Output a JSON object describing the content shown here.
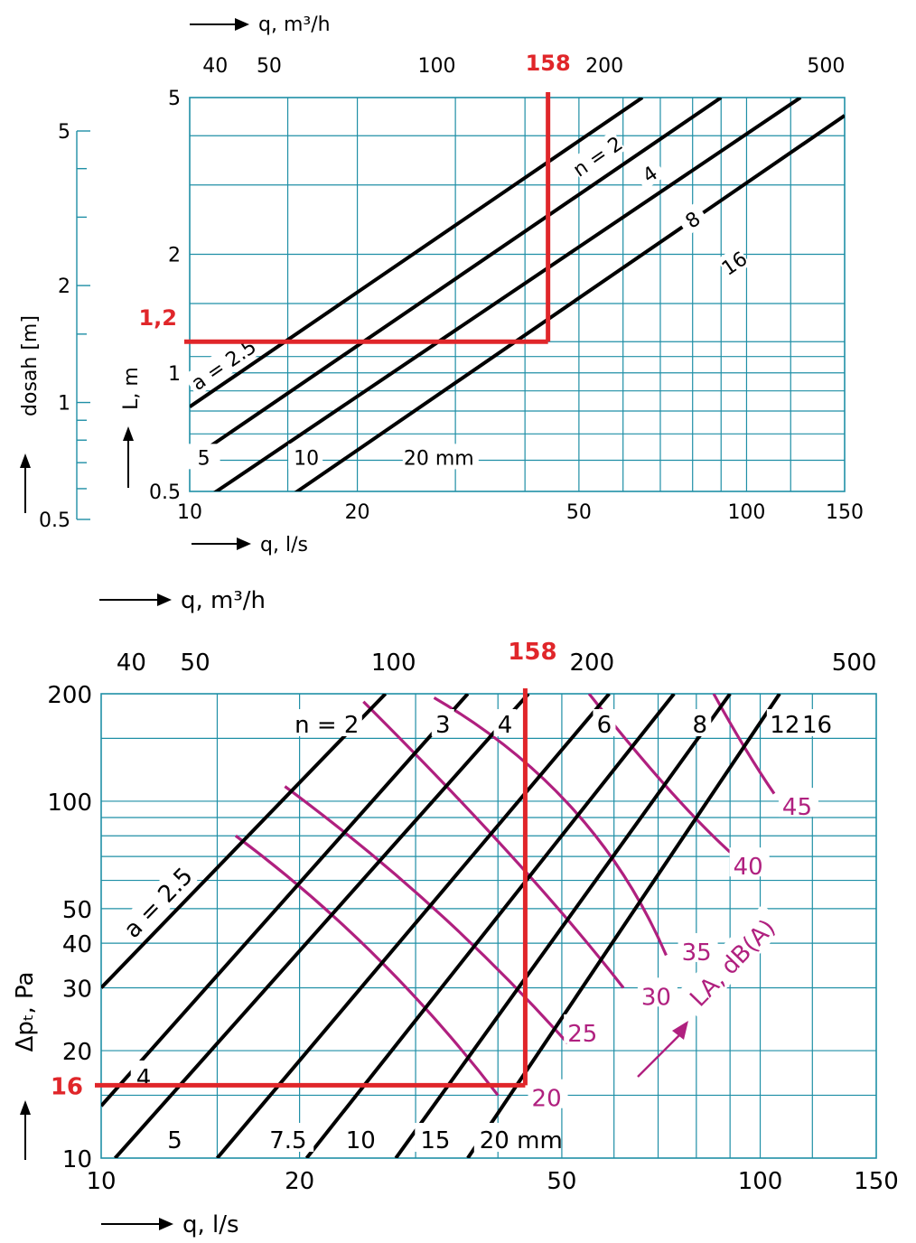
{
  "colors": {
    "grid": "#1f8fa6",
    "line": "#000000",
    "highlight": "#e0262a",
    "sound": "#b0207f"
  },
  "chart_data": [
    {
      "type": "line",
      "x_axis_top": {
        "label": "q, m³/h",
        "scale": "log",
        "ticks": [
          "40",
          "50",
          "100",
          "200",
          "500"
        ],
        "tick_values": [
          40,
          50,
          100,
          200,
          500
        ]
      },
      "x_axis_bottom": {
        "label": "q, l/s",
        "scale": "log",
        "ticks": [
          "10",
          "20",
          "50",
          "100",
          "150"
        ],
        "tick_values": [
          10,
          20,
          50,
          100,
          150
        ],
        "xlim": [
          10,
          150
        ]
      },
      "y_axis": {
        "label": "L, m",
        "scale": "log",
        "ticks": [
          "0.5",
          "1",
          "2",
          "5"
        ],
        "tick_values": [
          0.5,
          1,
          2,
          5
        ],
        "ylim": [
          0.5,
          5
        ]
      },
      "y_axis_outer": {
        "label": "dosah [m]",
        "ticks": [
          "0.5",
          "1",
          "2",
          "5"
        ],
        "tick_values": [
          0.5,
          1,
          2,
          5
        ]
      },
      "grid": true,
      "series": [
        {
          "name": "n = 2",
          "x": [
            10,
            65
          ],
          "y": [
            0.82,
            5.0
          ]
        },
        {
          "name": "4",
          "x": [
            10,
            90
          ],
          "y": [
            0.6,
            5.0
          ]
        },
        {
          "name": "8",
          "x": [
            10,
            125
          ],
          "y": [
            0.45,
            5.0
          ]
        },
        {
          "name": "16",
          "x": [
            14,
            150
          ],
          "y": [
            0.45,
            4.5
          ]
        }
      ],
      "size_labels": [
        {
          "text": "a = 2.5",
          "x": 11.5,
          "y": 1.05
        },
        {
          "text": "5",
          "x": 10.6,
          "y": 0.61
        },
        {
          "text": "10",
          "x": 16.2,
          "y": 0.61
        },
        {
          "text": "20 mm",
          "x": 26,
          "y": 0.61
        }
      ],
      "highlight": {
        "q_ls": 44,
        "q_m3h": 158,
        "L": 1.2,
        "q_label": "158",
        "L_label": "1,2"
      }
    },
    {
      "type": "line",
      "x_axis_top": {
        "label": "q, m³/h",
        "scale": "log",
        "ticks": [
          "40",
          "50",
          "100",
          "200",
          "500"
        ],
        "tick_values": [
          40,
          50,
          100,
          200,
          500
        ]
      },
      "x_axis_bottom": {
        "label": "q, l/s",
        "scale": "log",
        "ticks": [
          "10",
          "20",
          "50",
          "100",
          "150"
        ],
        "tick_values": [
          10,
          20,
          50,
          100,
          150
        ],
        "xlim": [
          10,
          150
        ]
      },
      "y_axis": {
        "label": "Δpₜ, Pa",
        "scale": "log",
        "ticks": [
          "10",
          "20",
          "30",
          "40",
          "50",
          "100",
          "200"
        ],
        "tick_values": [
          10,
          20,
          30,
          40,
          50,
          100,
          200
        ],
        "ylim": [
          10,
          200
        ]
      },
      "grid": true,
      "series": [
        {
          "name": "a = 2.5",
          "x": [
            10,
            27
          ],
          "y": [
            30,
            200
          ]
        },
        {
          "name": "4",
          "x": [
            10,
            36
          ],
          "y": [
            14,
            200
          ]
        },
        {
          "name": "5",
          "x": [
            10.5,
            44.5
          ],
          "y": [
            10,
            200
          ]
        },
        {
          "name": "7.5",
          "x": [
            15,
            59
          ],
          "y": [
            10,
            200
          ]
        },
        {
          "name": "10",
          "x": [
            20.5,
            74
          ],
          "y": [
            10,
            200
          ]
        },
        {
          "name": "15",
          "x": [
            28,
            90
          ],
          "y": [
            10,
            200
          ]
        },
        {
          "name": "20 mm",
          "x": [
            36,
            107
          ],
          "y": [
            10,
            200
          ]
        }
      ],
      "n_labels": [
        {
          "text": "n = 2",
          "x": 22,
          "y": 165
        },
        {
          "text": "3",
          "x": 33,
          "y": 165
        },
        {
          "text": "4",
          "x": 41,
          "y": 165
        },
        {
          "text": "6",
          "x": 58,
          "y": 165
        },
        {
          "text": "8",
          "x": 81,
          "y": 165
        },
        {
          "text": "12",
          "x": 109,
          "y": 165
        },
        {
          "text": "16",
          "x": 122,
          "y": 165
        }
      ],
      "bottom_labels": [
        {
          "text": "4",
          "x": 11.3,
          "y": 16.9
        },
        {
          "text": "5",
          "x": 12.6,
          "y": 11.3
        },
        {
          "text": "7.5",
          "x": 18,
          "y": 11.3
        },
        {
          "text": "10",
          "x": 23.5,
          "y": 11.3
        },
        {
          "text": "15",
          "x": 30.5,
          "y": 11.3
        },
        {
          "text": "20 mm",
          "x": 37.5,
          "y": 11.3
        }
      ],
      "sound_series": [
        {
          "name": "20",
          "x": [
            16,
            26,
            40
          ],
          "y": [
            80,
            37,
            15
          ]
        },
        {
          "name": "25",
          "x": [
            19,
            32,
            51
          ],
          "y": [
            110,
            50,
            21
          ]
        },
        {
          "name": "30",
          "x": [
            25,
            42,
            62
          ],
          "y": [
            190,
            70,
            30
          ]
        },
        {
          "name": "35",
          "x": [
            32,
            52,
            72
          ],
          "y": [
            195,
            95,
            37
          ]
        },
        {
          "name": "40",
          "x": [
            55,
            72,
            90
          ],
          "y": [
            200,
            110,
            72
          ]
        },
        {
          "name": "45",
          "x": [
            85,
            95,
            105
          ],
          "y": [
            200,
            140,
            105
          ]
        }
      ],
      "sound_labels": [
        {
          "text": "20",
          "x": 45,
          "y": 14.8
        },
        {
          "text": "25",
          "x": 51,
          "y": 22.5
        },
        {
          "text": "30",
          "x": 66,
          "y": 28.5
        },
        {
          "text": "35",
          "x": 76,
          "y": 38
        },
        {
          "text": "40",
          "x": 91,
          "y": 66
        },
        {
          "text": "45",
          "x": 108,
          "y": 97
        }
      ],
      "sound_axis_label": "LA, dB(A)",
      "highlight": {
        "q_ls": 44,
        "q_m3h": 158,
        "dp": 16,
        "q_label": "158",
        "dp_label": "16"
      }
    }
  ]
}
